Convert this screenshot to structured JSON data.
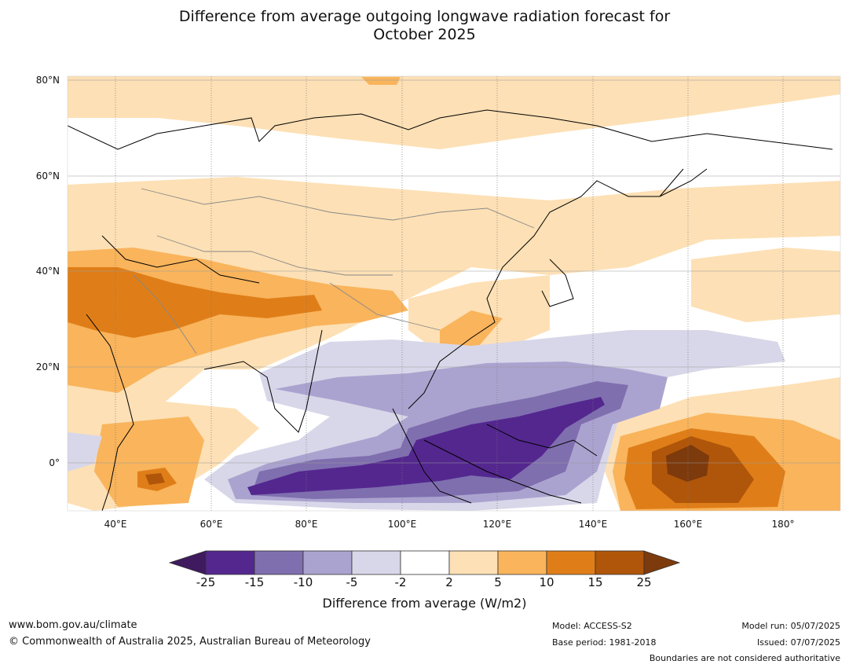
{
  "title_line1": "Difference from average outgoing longwave radiation forecast for",
  "title_line2": "October 2025",
  "lat_labels": [
    "80°N",
    "60°N",
    "40°N",
    "20°N",
    "0°"
  ],
  "lon_labels": [
    "40°E",
    "60°E",
    "80°E",
    "100°E",
    "120°E",
    "140°E",
    "160°E",
    "180°"
  ],
  "colorbar": {
    "ticks": [
      "-25",
      "-15",
      "-10",
      "-5",
      "-2",
      "2",
      "5",
      "10",
      "15",
      "25"
    ],
    "colors": [
      "#3f1a5e",
      "#54278f",
      "#7f6faf",
      "#aba3cf",
      "#d8d7e9",
      "#ffffff",
      "#fde0b5",
      "#f9b45c",
      "#df7e18",
      "#b0560a",
      "#7d3a0c"
    ],
    "label": "Difference from average (W/m2)"
  },
  "footer": {
    "website": "www.bom.gov.au/climate",
    "copyright": "© Commonwealth of Australia 2025, Australian Bureau of Meteorology",
    "model": "Model: ACCESS-S2",
    "base_period": "Base period: 1981-2018",
    "model_run": "Model run: 05/07/2025",
    "issued": "Issued: 07/07/2025",
    "disclaimer": "Boundaries are not considered authoritative"
  }
}
